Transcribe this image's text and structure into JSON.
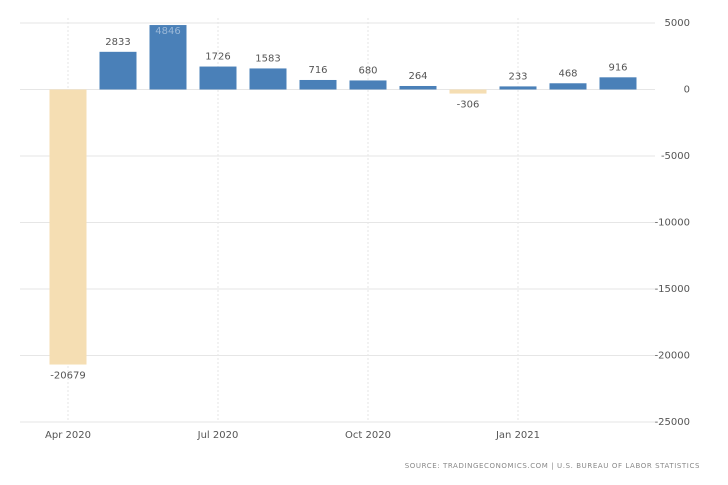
{
  "chart_data": {
    "type": "bar",
    "categories": [
      "Apr 2020",
      null,
      null,
      "Jul 2020",
      null,
      null,
      "Oct 2020",
      null,
      null,
      "Jan 2021",
      null,
      null
    ],
    "values": [
      -20679,
      2833,
      4846,
      1726,
      1583,
      716,
      680,
      264,
      -306,
      233,
      468,
      916
    ],
    "positive_color": "#4a80b8",
    "negative_color": "#f5deb3",
    "ylim": [
      -25000,
      5000
    ],
    "yticks": [
      -25000,
      -20000,
      -15000,
      -10000,
      -5000,
      0,
      5000
    ],
    "grid": true,
    "y_axis_side": "right",
    "source": "SOURCE: TRADINGECONOMICS.COM | U.S. BUREAU OF LABOR STATISTICS"
  }
}
